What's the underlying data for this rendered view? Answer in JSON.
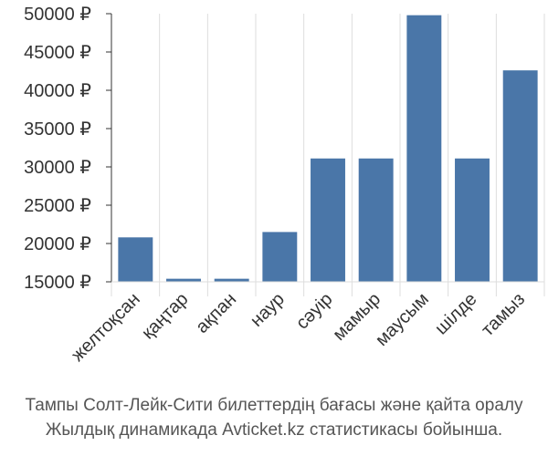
{
  "chart_data": {
    "type": "bar",
    "categories": [
      "желтоқсан",
      "қаңтар",
      "ақпан",
      "наур",
      "сәуір",
      "мамыр",
      "маусым",
      "шілде",
      "тамыз"
    ],
    "values": [
      20800,
      15400,
      15400,
      21500,
      31100,
      31100,
      49800,
      31100,
      42600
    ],
    "ylim": [
      15000,
      50000
    ],
    "yticks": [
      15000,
      20000,
      25000,
      30000,
      35000,
      40000,
      45000,
      50000
    ],
    "ytick_labels": [
      "15000 ₽",
      "20000 ₽",
      "25000 ₽",
      "30000 ₽",
      "35000 ₽",
      "40000 ₽",
      "45000 ₽",
      "50000 ₽"
    ],
    "grid": "vertical",
    "bar_color": "#4a76a8",
    "grid_color": "#dddddd"
  },
  "caption": {
    "line1": "Тампы Солт-Лейк-Сити билеттердің бағасы және қайта оралу",
    "line2": "Жылдық динамикада Avticket.kz статистикасы бойынша."
  }
}
